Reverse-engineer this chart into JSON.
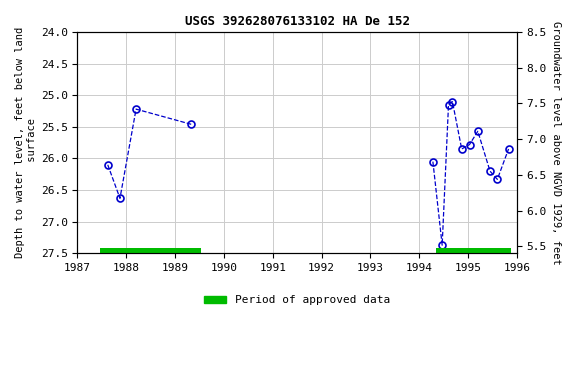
{
  "title": "USGS 392628076133102 HA De 152",
  "ylabel_left": "Depth to water level, feet below land\n surface",
  "ylabel_right": "Groundwater level above NGVD 1929, feet",
  "xlim": [
    1987,
    1996
  ],
  "ylim_left_bottom": 27.5,
  "ylim_left_top": 24.0,
  "ylim_right_bottom": 5.4,
  "ylim_right_top": 8.5,
  "xticks": [
    1987,
    1988,
    1989,
    1990,
    1991,
    1992,
    1993,
    1994,
    1995,
    1996
  ],
  "yticks_left": [
    24.0,
    24.5,
    25.0,
    25.5,
    26.0,
    26.5,
    27.0,
    27.5
  ],
  "yticks_right": [
    8.5,
    8.0,
    7.5,
    7.0,
    6.5,
    6.0,
    5.5
  ],
  "segments": [
    {
      "x": [
        1987.62,
        1987.87,
        1988.2,
        1989.33
      ],
      "y": [
        26.1,
        26.63,
        25.22,
        25.46
      ]
    },
    {
      "x": [
        1994.28,
        1994.47,
        1994.6,
        1994.68,
        1994.87,
        1995.03,
        1995.2,
        1995.45,
        1995.6,
        1995.83
      ],
      "y": [
        26.05,
        27.37,
        25.15,
        25.1,
        25.85,
        25.78,
        25.57,
        26.2,
        26.33,
        25.85
      ]
    }
  ],
  "line_color": "#0000cc",
  "marker_color": "#0000cc",
  "bar_segments": [
    {
      "xstart": 1987.47,
      "xend": 1989.53
    },
    {
      "xstart": 1994.35,
      "xend": 1995.87
    }
  ],
  "bar_color": "#00bb00",
  "bar_y": 27.5,
  "bar_thickness": 0.09,
  "legend_label": "Period of approved data",
  "background_color": "#ffffff",
  "grid_color": "#cccccc",
  "font_family": "monospace",
  "title_fontsize": 9,
  "tick_fontsize": 8,
  "label_fontsize": 7.5
}
